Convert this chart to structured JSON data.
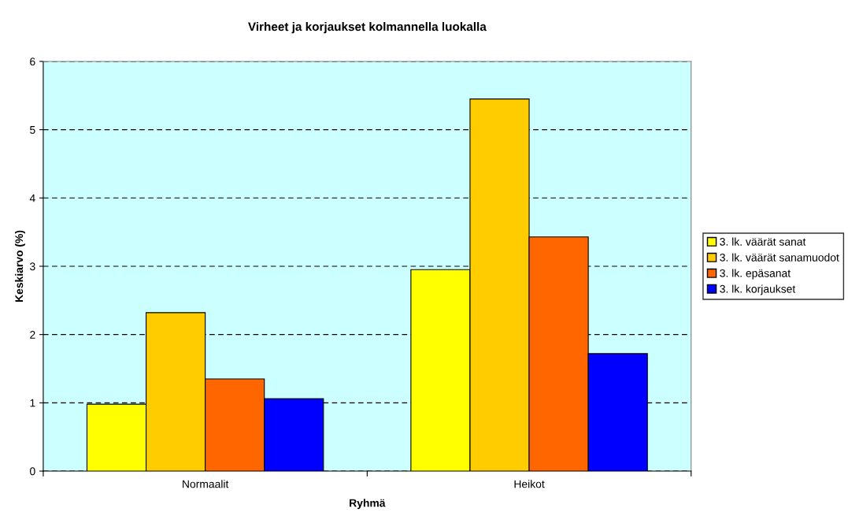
{
  "chart_data": {
    "type": "bar",
    "title": "Virheet ja korjaukset kolmannella luokalla",
    "xlabel": "Ryhmä",
    "ylabel": "Keskiarvo (%)",
    "categories": [
      "Normaalit",
      "Heikot"
    ],
    "series": [
      {
        "name": "3. lk. väärät sanat",
        "color": "#ffff00",
        "values": [
          0.98,
          2.95
        ]
      },
      {
        "name": "3. lk. väärät sanamuodot",
        "color": "#ffcc00",
        "values": [
          2.32,
          5.45
        ]
      },
      {
        "name": "3. lk. epäsanat",
        "color": "#ff6600",
        "values": [
          1.35,
          3.43
        ]
      },
      {
        "name": "3. lk. korjaukset",
        "color": "#0000ff",
        "values": [
          1.06,
          1.72
        ]
      }
    ],
    "ylim": [
      0,
      6
    ],
    "yticks": [
      0,
      1,
      2,
      3,
      4,
      5,
      6
    ],
    "grid": "y",
    "legend": "right"
  }
}
